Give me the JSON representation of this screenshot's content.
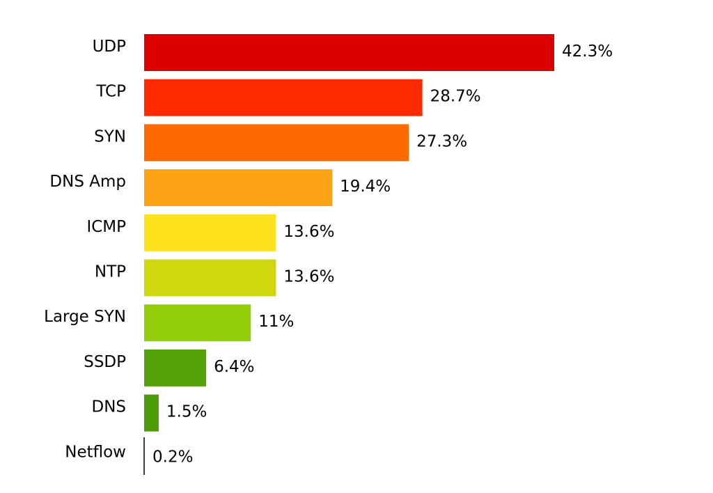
{
  "chart_data": {
    "type": "bar",
    "orientation": "horizontal",
    "categories": [
      "UDP",
      "TCP",
      "SYN",
      "DNS Amp",
      "ICMP",
      "NTP",
      "Large SYN",
      "SSDP",
      "DNS",
      "Netflow"
    ],
    "values": [
      42.3,
      28.7,
      27.3,
      19.4,
      13.6,
      13.6,
      11,
      6.4,
      1.5,
      0.2
    ],
    "value_labels": [
      "42.3%",
      "28.7%",
      "27.3%",
      "19.4%",
      "13.6%",
      "13.6%",
      "11%",
      "6.4%",
      "1.5%",
      "0.2%"
    ],
    "colors": [
      "#dc0000",
      "#ff2a00",
      "#ff6a00",
      "#fca316",
      "#fee21c",
      "#cfd80f",
      "#93ce0a",
      "#55a10a",
      "#4a9a0a",
      "#000000"
    ],
    "xlim": [
      0,
      42.3
    ],
    "grid": false,
    "legend": "none"
  }
}
